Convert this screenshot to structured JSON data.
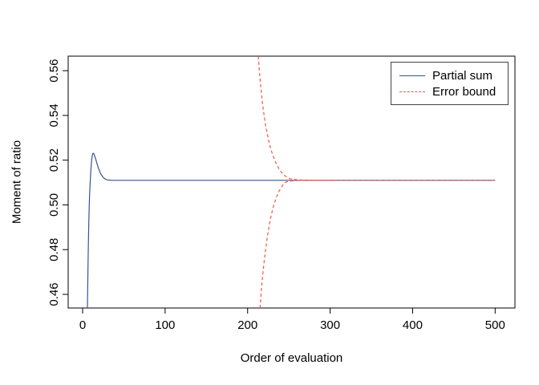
{
  "chart_data": {
    "type": "line",
    "title": "",
    "xlabel": "Order of evaluation",
    "ylabel": "Moment of ratio",
    "xlim": [
      -17.5,
      524
    ],
    "ylim": [
      0.4539,
      0.5665
    ],
    "grid": false,
    "xticks": {
      "values": [
        0,
        100,
        200,
        300,
        400,
        500
      ],
      "labels": [
        "0",
        "100",
        "200",
        "300",
        "400",
        "500"
      ]
    },
    "yticks": {
      "values": [
        0.46,
        0.48,
        0.5,
        0.52,
        0.54,
        0.56
      ],
      "labels": [
        "0.46",
        "0.48",
        "0.50",
        "0.52",
        "0.54",
        "0.56"
      ]
    },
    "legend": {
      "position": "top-right",
      "entries": [
        "Partial sum",
        "Error bound"
      ]
    },
    "converged_value": 0.511,
    "series": [
      {
        "name": "Partial sum",
        "color": "#3a538e",
        "line": "solid",
        "branches": [
          [
            [
              5.8,
              0.4539
            ],
            [
              6.5,
              0.472
            ],
            [
              7,
              0.483
            ],
            [
              7.5,
              0.492
            ],
            [
              8,
              0.499
            ],
            [
              8.5,
              0.5045
            ],
            [
              9,
              0.509
            ],
            [
              9.5,
              0.5125
            ],
            [
              10,
              0.5155
            ],
            [
              10.5,
              0.518
            ],
            [
              11,
              0.52
            ],
            [
              11.5,
              0.5215
            ],
            [
              12,
              0.5225
            ],
            [
              12.5,
              0.523
            ],
            [
              13,
              0.5231
            ],
            [
              13.5,
              0.5229
            ],
            [
              14,
              0.5225
            ],
            [
              15,
              0.5215
            ],
            [
              16,
              0.5203
            ],
            [
              17,
              0.519
            ],
            [
              18,
              0.5178
            ],
            [
              19,
              0.5166
            ],
            [
              20,
              0.5156
            ],
            [
              21,
              0.5147
            ],
            [
              22,
              0.5139
            ],
            [
              23,
              0.5133
            ],
            [
              24,
              0.5127
            ],
            [
              25,
              0.5123
            ],
            [
              26,
              0.5119
            ],
            [
              27,
              0.5117
            ],
            [
              28,
              0.5114
            ],
            [
              29,
              0.5113
            ],
            [
              30,
              0.5112
            ],
            [
              32,
              0.5111
            ],
            [
              35,
              0.511
            ],
            [
              40,
              0.511
            ],
            [
              50,
              0.511
            ],
            [
              75,
              0.511
            ],
            [
              100,
              0.511
            ],
            [
              150,
              0.511
            ],
            [
              200,
              0.511
            ],
            [
              250,
              0.511
            ],
            [
              300,
              0.511
            ],
            [
              350,
              0.511
            ],
            [
              400,
              0.511
            ],
            [
              450,
              0.511
            ],
            [
              500,
              0.511
            ]
          ]
        ]
      },
      {
        "name": "Error bound",
        "color": "#ef5a47",
        "line": "dashed",
        "branches": [
          [
            [
              213,
              0.5665
            ],
            [
              214,
              0.561
            ],
            [
              215,
              0.5565
            ],
            [
              216,
              0.5525
            ],
            [
              217,
              0.549
            ],
            [
              218,
              0.5455
            ],
            [
              219,
              0.5425
            ],
            [
              220,
              0.54
            ],
            [
              221,
              0.5375
            ],
            [
              222,
              0.535
            ],
            [
              224,
              0.5315
            ],
            [
              226,
              0.528
            ],
            [
              228,
              0.5252
            ],
            [
              230,
              0.5228
            ],
            [
              232,
              0.5208
            ],
            [
              234,
              0.519
            ],
            [
              236,
              0.5175
            ],
            [
              238,
              0.5162
            ],
            [
              240,
              0.515
            ],
            [
              243,
              0.5138
            ],
            [
              246,
              0.5128
            ],
            [
              249,
              0.512
            ],
            [
              252,
              0.5117
            ],
            [
              256,
              0.5114
            ],
            [
              260,
              0.5112
            ],
            [
              265,
              0.5111
            ],
            [
              270,
              0.5111
            ],
            [
              280,
              0.511
            ],
            [
              300,
              0.511
            ],
            [
              350,
              0.511
            ],
            [
              400,
              0.511
            ],
            [
              450,
              0.511
            ],
            [
              500,
              0.511
            ]
          ],
          [
            [
              215,
              0.4539
            ],
            [
              216,
              0.459
            ],
            [
              217,
              0.4635
            ],
            [
              218,
              0.4675
            ],
            [
              219,
              0.471
            ],
            [
              220,
              0.4745
            ],
            [
              221,
              0.4775
            ],
            [
              222,
              0.4805
            ],
            [
              224,
              0.486
            ],
            [
              226,
              0.4905
            ],
            [
              228,
              0.4943
            ],
            [
              230,
              0.4975
            ],
            [
              232,
              0.5002
            ],
            [
              234,
              0.5025
            ],
            [
              236,
              0.5044
            ],
            [
              238,
              0.506
            ],
            [
              240,
              0.5074
            ],
            [
              243,
              0.509
            ],
            [
              246,
              0.5101
            ],
            [
              249,
              0.5106
            ],
            [
              252,
              0.5107
            ],
            [
              256,
              0.5108
            ],
            [
              260,
              0.5109
            ],
            [
              265,
              0.511
            ],
            [
              270,
              0.511
            ],
            [
              280,
              0.511
            ],
            [
              300,
              0.511
            ]
          ]
        ]
      }
    ]
  }
}
